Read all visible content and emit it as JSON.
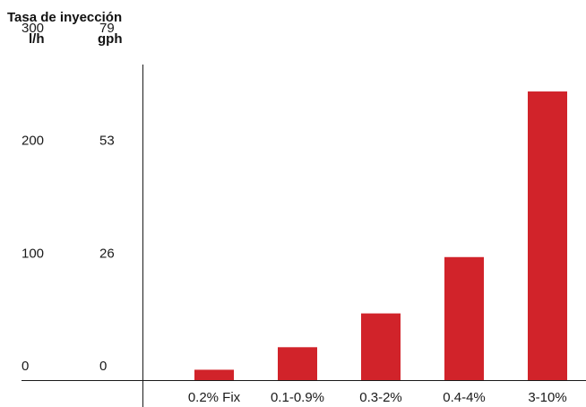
{
  "chart_data": {
    "type": "bar",
    "title": "Tasa de inyección",
    "y_units": [
      "l/h",
      "gph"
    ],
    "categories": [
      "0.2% Fix",
      "0.1-0.9%",
      "0.3-2%",
      "0.4-4%",
      "3-10%"
    ],
    "values": [
      10,
      30,
      60,
      110,
      257
    ],
    "ylim": [
      0,
      300
    ],
    "y_ticks_lh": [
      "300",
      "200",
      "100",
      "0"
    ],
    "y_ticks_gph": [
      "79",
      "53",
      "26",
      "0"
    ],
    "y_tick_values": [
      300,
      200,
      100,
      0
    ],
    "grid": false,
    "colors": {
      "bar": "#d1232a",
      "axis": "#1a1a1a",
      "text": "#1a1a1a"
    }
  }
}
